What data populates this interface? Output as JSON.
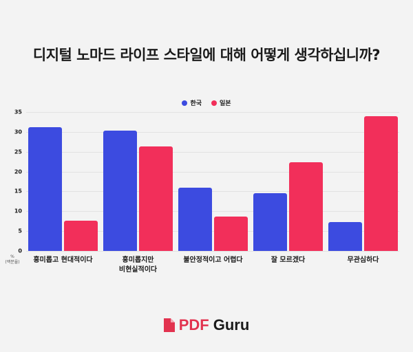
{
  "title": "디지털 노마드 라이프 스타일에 대해 어떻게 생각하십니까?",
  "legend": [
    {
      "label": "한국",
      "color": "#3c4be0"
    },
    {
      "label": "일본",
      "color": "#f22f5a"
    }
  ],
  "yaxis": {
    "unit": "%",
    "unit_sub": "(백분율)",
    "ticks": [
      "0",
      "5",
      "10",
      "15",
      "20",
      "25",
      "30",
      "35"
    ]
  },
  "categories": [
    "흥미롭고 현대적이다",
    "흥미롭지만\n비현실적이다",
    "불안정적이고 어렵다",
    "잘 모르겠다",
    "무관심하다"
  ],
  "category_lines": [
    [
      "흥미롭고 현대적이다"
    ],
    [
      "흥미롭지만",
      "비현실적이다"
    ],
    [
      "불안정적이고 어렵다"
    ],
    [
      "잘 모르겠다"
    ],
    [
      "무관심하다"
    ]
  ],
  "logo": {
    "pdf": "PDF",
    "guru": "Guru"
  },
  "chart_data": {
    "type": "bar",
    "title": "디지털 노마드 라이프 스타일에 대해 어떻게 생각하십니까?",
    "categories": [
      "흥미롭고 현대적이다",
      "흥미롭지만 비현실적이다",
      "불안정적이고 어렵다",
      "잘 모르겠다",
      "무관심하다"
    ],
    "series": [
      {
        "name": "한국",
        "color": "#3c4be0",
        "values": [
          31.2,
          30.3,
          16.0,
          14.5,
          7.3
        ]
      },
      {
        "name": "일본",
        "color": "#f22f5a",
        "values": [
          7.6,
          26.4,
          8.6,
          22.4,
          34.0
        ]
      }
    ],
    "xlabel": "",
    "ylabel": "% (백분율)",
    "ylim": [
      0,
      35
    ],
    "yticks": [
      0,
      5,
      10,
      15,
      20,
      25,
      30,
      35
    ],
    "grid": true,
    "legend_position": "top"
  }
}
